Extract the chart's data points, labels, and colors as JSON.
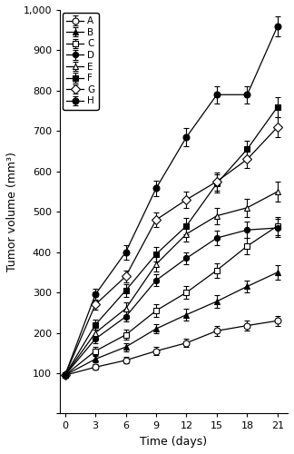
{
  "x": [
    0,
    3,
    6,
    9,
    12,
    15,
    18,
    21
  ],
  "series_order": [
    "A",
    "B",
    "C",
    "D",
    "E",
    "F",
    "G",
    "H"
  ],
  "series_data": {
    "A": {
      "y": [
        95,
        115,
        132,
        155,
        175,
        205,
        218,
        230
      ],
      "yerr": [
        5,
        7,
        8,
        10,
        10,
        12,
        12,
        12
      ]
    },
    "B": {
      "y": [
        95,
        135,
        165,
        210,
        245,
        278,
        315,
        350
      ],
      "yerr": [
        5,
        8,
        10,
        12,
        15,
        15,
        15,
        18
      ]
    },
    "C": {
      "y": [
        95,
        155,
        195,
        255,
        300,
        355,
        415,
        465
      ],
      "yerr": [
        5,
        10,
        12,
        15,
        15,
        18,
        20,
        22
      ]
    },
    "D": {
      "y": [
        95,
        185,
        240,
        330,
        385,
        435,
        455,
        460
      ],
      "yerr": [
        5,
        10,
        12,
        15,
        15,
        18,
        20,
        22
      ]
    },
    "E": {
      "y": [
        95,
        200,
        260,
        370,
        445,
        490,
        510,
        550
      ],
      "yerr": [
        5,
        12,
        15,
        18,
        18,
        20,
        22,
        25
      ]
    },
    "F": {
      "y": [
        95,
        220,
        305,
        395,
        465,
        570,
        655,
        760
      ],
      "yerr": [
        5,
        12,
        15,
        18,
        20,
        22,
        22,
        25
      ]
    },
    "G": {
      "y": [
        95,
        270,
        340,
        480,
        530,
        575,
        630,
        710
      ],
      "yerr": [
        5,
        12,
        15,
        18,
        20,
        22,
        22,
        25
      ]
    },
    "H": {
      "y": [
        95,
        295,
        400,
        558,
        685,
        790,
        790,
        960
      ],
      "yerr": [
        5,
        15,
        18,
        20,
        22,
        22,
        22,
        25
      ]
    }
  },
  "marker_map": {
    "A": {
      "marker": "o",
      "mfc": "white",
      "mec": "black"
    },
    "B": {
      "marker": "^",
      "mfc": "black",
      "mec": "black"
    },
    "C": {
      "marker": "s",
      "mfc": "white",
      "mec": "black"
    },
    "D": {
      "marker": "o",
      "mfc": "black",
      "mec": "black"
    },
    "E": {
      "marker": "^",
      "mfc": "white",
      "mec": "black"
    },
    "F": {
      "marker": "s",
      "mfc": "black",
      "mec": "black"
    },
    "G": {
      "marker": "o",
      "mfc": "white",
      "mec": "black"
    },
    "H": {
      "marker": "o",
      "mfc": "black",
      "mec": "black"
    }
  },
  "xlabel": "Time (days)",
  "ylabel": "Tumor volume (mm³)",
  "xlim": [
    -0.5,
    22
  ],
  "ylim": [
    0,
    1000
  ],
  "xticks": [
    0,
    3,
    6,
    9,
    12,
    15,
    18,
    21
  ],
  "yticks": [
    0,
    100,
    200,
    300,
    400,
    500,
    600,
    700,
    800,
    900,
    1000
  ],
  "ytick_labels": [
    "",
    "100",
    "200",
    "300",
    "400",
    "500",
    "600",
    "700",
    "800",
    "900",
    "1,000"
  ],
  "legend_loc": "upper left",
  "figsize": [
    3.24,
    5.0
  ],
  "dpi": 100
}
